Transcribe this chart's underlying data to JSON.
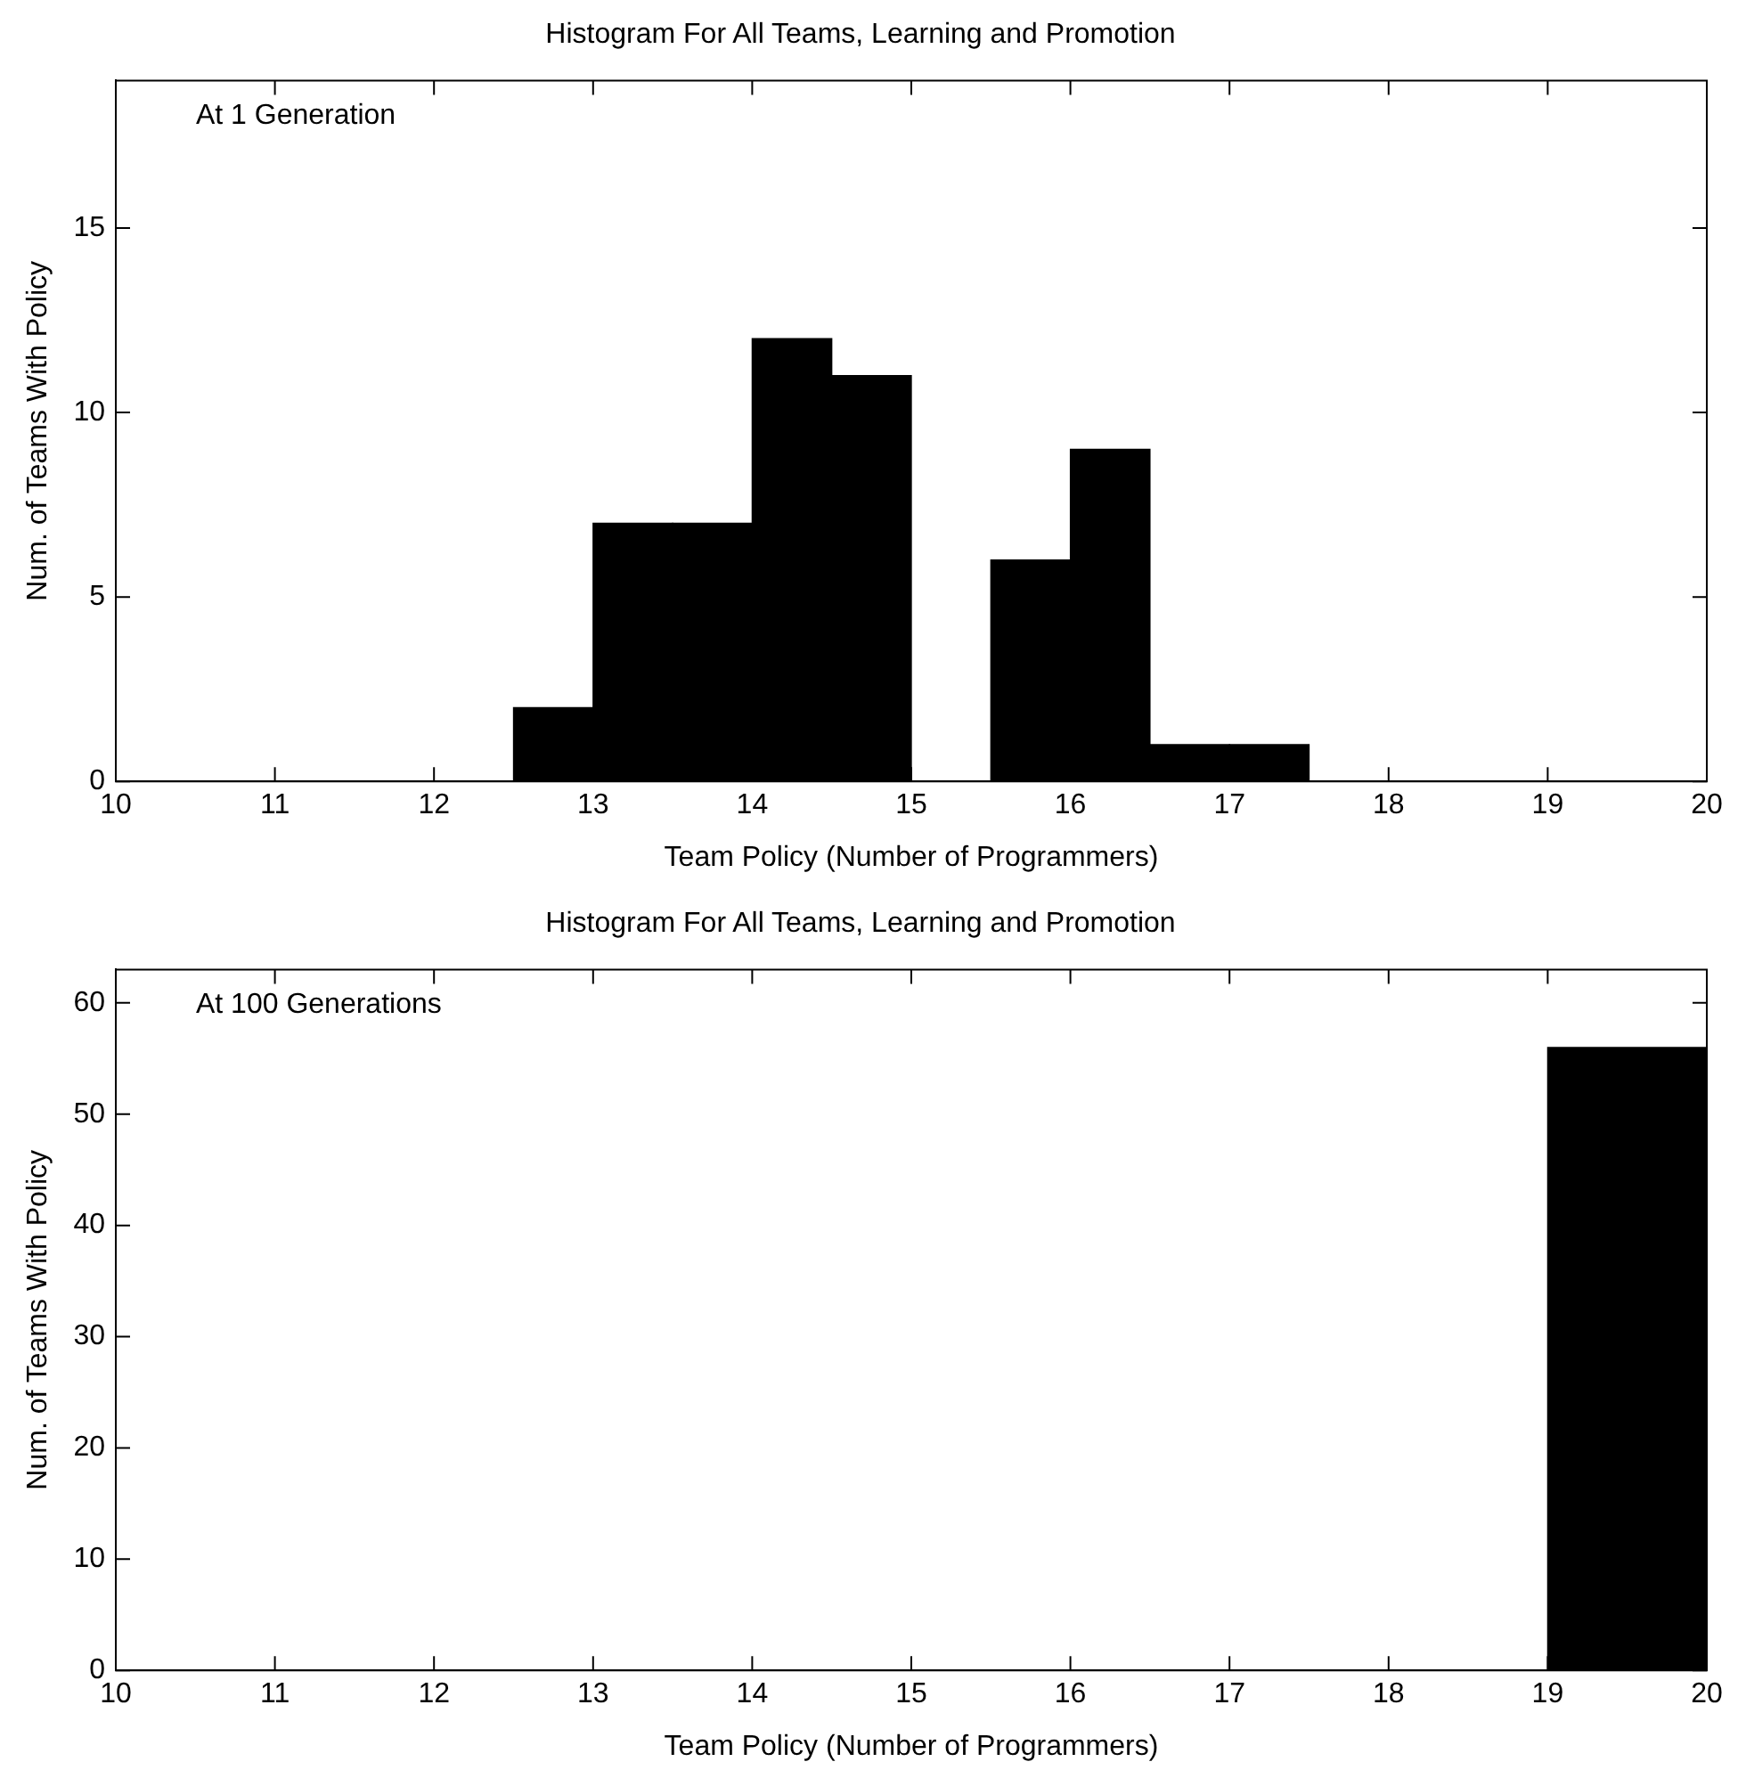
{
  "chart_data": [
    {
      "type": "histogram",
      "title": "Histogram For All Teams, Learning and Promotion",
      "xlabel": "Team Policy (Number of Programmers)",
      "ylabel": "Num. of Teams With Policy",
      "annotations": [
        "At 1 Generation"
      ],
      "bins": [
        10,
        10.5,
        11,
        11.5,
        12,
        12.5,
        13,
        13.5,
        14,
        14.5,
        15,
        15.5,
        16,
        16.5,
        17,
        17.5,
        18,
        18.5,
        19,
        19.5,
        20
      ],
      "values": [
        0,
        0,
        0,
        0,
        0,
        2,
        7,
        7,
        12,
        11,
        0,
        6,
        9,
        1,
        1,
        0,
        0,
        0,
        0,
        0
      ],
      "color": "#000000",
      "xlim": [
        10,
        20
      ],
      "xticks": [
        10,
        11,
        12,
        13,
        14,
        15,
        16,
        17,
        18,
        19,
        20
      ],
      "ylim": [
        0,
        19
      ],
      "yticks": [
        0,
        5,
        10,
        15
      ],
      "grid": false,
      "legend": false
    },
    {
      "type": "histogram",
      "title": "Histogram For All Teams, Learning and Promotion",
      "xlabel": "Team Policy (Number of Programmers)",
      "ylabel": "Num. of Teams With Policy",
      "annotations": [
        "At 100 Generations"
      ],
      "bins": [
        10,
        11,
        12,
        13,
        14,
        15,
        16,
        17,
        18,
        19,
        20
      ],
      "values": [
        0,
        0,
        0,
        0,
        0,
        0,
        0,
        0,
        0,
        56
      ],
      "color": "#000000",
      "xlim": [
        10,
        20
      ],
      "xticks": [
        10,
        11,
        12,
        13,
        14,
        15,
        16,
        17,
        18,
        19,
        20
      ],
      "ylim": [
        0,
        63
      ],
      "yticks": [
        0,
        10,
        20,
        30,
        40,
        50,
        60
      ],
      "grid": false,
      "legend": false
    }
  ]
}
